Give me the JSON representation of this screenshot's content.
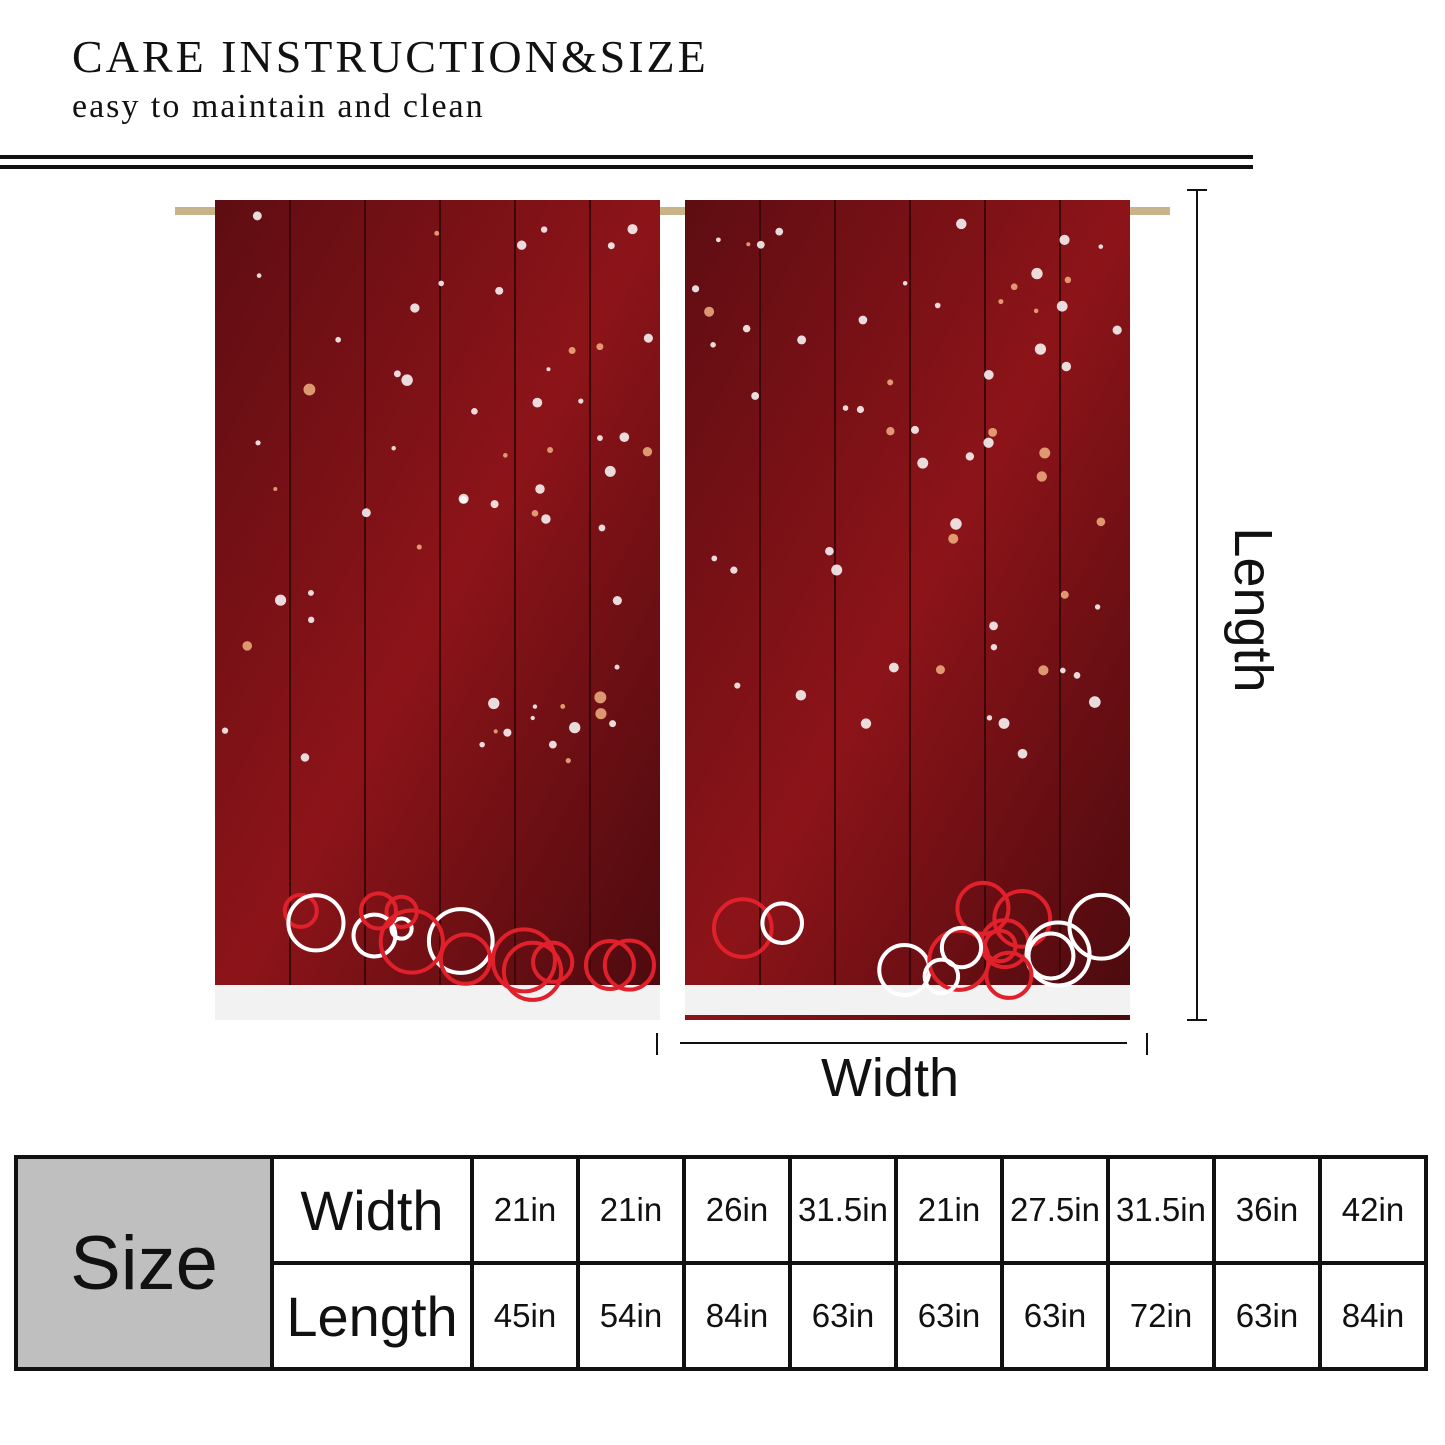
{
  "header": {
    "title": "CARE INSTRUCTION&SIZE",
    "subtitle": "easy to maintain and clean"
  },
  "diagram": {
    "length_label": "Length",
    "width_label": "Width"
  },
  "table": {
    "corner": "Size",
    "rows": [
      [
        "Width",
        "21in",
        "21in",
        "26in",
        "31.5in",
        "21in",
        "27.5in",
        "31.5in",
        "36in",
        "42in"
      ],
      [
        "Length",
        "45in",
        "54in",
        "84in",
        "63in",
        "63in",
        "63in",
        "72in",
        "63in",
        "84in"
      ]
    ]
  }
}
